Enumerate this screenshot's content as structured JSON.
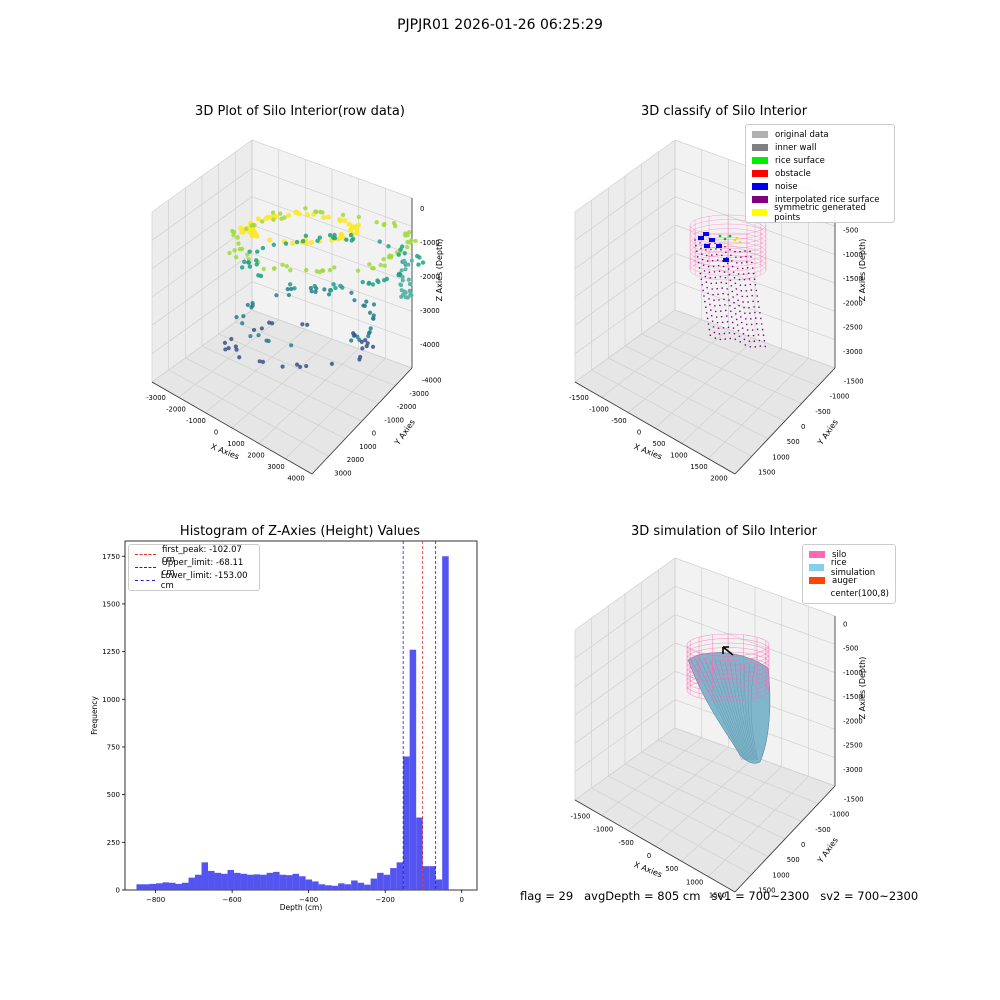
{
  "figure_title": "PJPJR01 2026-01-26 06:25:29",
  "footer": "flag = 29   avgDepth = 805 cm   sv1 = 700~2300   sv2 = 700~2300",
  "colors": {
    "hist_bar": "#4b4bf0",
    "peak_line": "#e03030",
    "limit_line": "#2020d0",
    "silo": "#ff69b4",
    "rice_sim": "#87ceeb",
    "auger": "#ff4500"
  },
  "chart_data": [
    {
      "type": "scatter",
      "title": "3D Plot of Silo Interior(row data)",
      "xlabel": "X Axies",
      "ylabel": "Y Axies",
      "zlabel": "Z Axies (Depth)",
      "x_ticks": [
        "-3000",
        "-2000",
        "-1000",
        "0",
        "1000",
        "2000",
        "3000",
        "4000"
      ],
      "y_ticks": [
        "3000",
        "2000",
        "1000",
        "0",
        "-1000",
        "-2000",
        "-3000",
        "-4000"
      ],
      "z_ticks": [
        "0",
        "-1000",
        "-2000",
        "-3000",
        "-4000"
      ],
      "colormap": "viridis by depth"
    },
    {
      "type": "scatter",
      "title": "3D classify of Silo Interior",
      "xlabel": "X Axies",
      "ylabel": "Y Axies",
      "zlabel": "Z Axies (Depth)",
      "x_ticks": [
        "-1500",
        "-1000",
        "-500",
        "0",
        "500",
        "1000",
        "1500",
        "2000"
      ],
      "y_ticks": [
        "1500",
        "1000",
        "500",
        "0",
        "-500",
        "-1000",
        "-1500"
      ],
      "z_ticks": [
        "0",
        "-500",
        "-1000",
        "-1500",
        "-2000",
        "-2500",
        "-3000"
      ],
      "legend": [
        {
          "label": "original data",
          "color": "#b0b0b0"
        },
        {
          "label": "inner wall",
          "color": "#808080"
        },
        {
          "label": "rice surface",
          "color": "#00ee00"
        },
        {
          "label": "obstacle",
          "color": "#ff0000"
        },
        {
          "label": "noise",
          "color": "#0000ee"
        },
        {
          "label": "interpolated rice surface",
          "color": "#800080"
        },
        {
          "label": "symmetric generated points",
          "color": "#ffff00"
        }
      ]
    },
    {
      "type": "bar",
      "title": "Histogram of Z-Axies (Height) Values",
      "xlabel": "Depth (cm)",
      "ylabel": "Frequency",
      "xlim": [
        -880,
        40
      ],
      "ylim": [
        0,
        1830
      ],
      "x_ticks": [
        -800,
        -600,
        -400,
        -200,
        0
      ],
      "y_ticks": [
        0,
        250,
        500,
        750,
        1000,
        1250,
        1500,
        1750
      ],
      "bin_width": 17,
      "bin_starts": [
        -850,
        -833,
        -816,
        -799,
        -782,
        -765,
        -748,
        -731,
        -714,
        -697,
        -680,
        -663,
        -646,
        -629,
        -612,
        -595,
        -578,
        -561,
        -544,
        -527,
        -510,
        -493,
        -476,
        -459,
        -442,
        -425,
        -408,
        -391,
        -374,
        -357,
        -340,
        -323,
        -306,
        -289,
        -272,
        -255,
        -238,
        -221,
        -204,
        -187,
        -170,
        -153,
        -136,
        -119,
        -102,
        -85,
        -68,
        -51,
        -34,
        -17
      ],
      "values": [
        30,
        30,
        32,
        35,
        40,
        38,
        32,
        38,
        65,
        80,
        145,
        100,
        90,
        85,
        105,
        90,
        85,
        80,
        82,
        80,
        90,
        95,
        80,
        78,
        85,
        72,
        55,
        45,
        30,
        25,
        22,
        35,
        30,
        50,
        38,
        28,
        60,
        90,
        80,
        115,
        145,
        700,
        1260,
        380,
        125,
        125,
        55,
        1750,
        0,
        0
      ],
      "lines": [
        {
          "label": "first_peak: -102.07 cm",
          "x": -102.07,
          "kind": "peak"
        },
        {
          "label": "Upper_limit: -68.11 cm",
          "x": -68.11,
          "kind": "limit"
        },
        {
          "label": "Lower_limit: -153.00 cm",
          "x": -153.0,
          "kind": "limit"
        }
      ]
    },
    {
      "type": "area",
      "title": "3D simulation of Silo Interior",
      "xlabel": "X Axies",
      "ylabel": "Y Axies",
      "zlabel": "Z Axies (Depth)",
      "x_ticks": [
        "-1500",
        "-1000",
        "-500",
        "0",
        "500",
        "1000",
        "1500"
      ],
      "y_ticks": [
        "1500",
        "1000",
        "500",
        "0",
        "-500",
        "-1000",
        "-1500"
      ],
      "z_ticks": [
        "0",
        "-500",
        "-1000",
        "-1500",
        "-2000",
        "-2500",
        "-3000"
      ],
      "legend": [
        {
          "label": "silo",
          "color": "#ff69b4"
        },
        {
          "label": "rice simulation",
          "color": "#87ceeb"
        },
        {
          "label": "auger",
          "color": "#ff4500"
        },
        {
          "label": "center(100,8)",
          "color": "#ffffff"
        }
      ]
    }
  ]
}
